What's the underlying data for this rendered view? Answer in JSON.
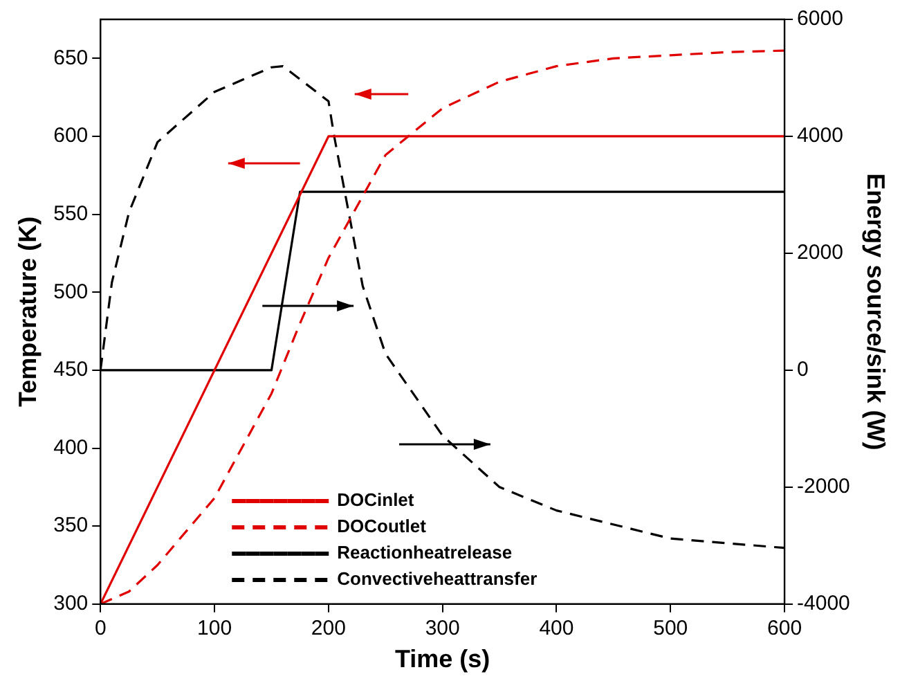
{
  "chart_data": {
    "type": "line",
    "xlabel": "Time (s)",
    "ylabel": "Temperature (K)",
    "y2label": "Energy source/sink (W)",
    "xlim": [
      0,
      600
    ],
    "xticks": [
      0,
      100,
      200,
      300,
      400,
      500,
      600
    ],
    "ylim": [
      300,
      675
    ],
    "yticks": [
      300,
      350,
      400,
      450,
      500,
      550,
      600,
      650
    ],
    "y2lim": [
      -4000,
      6000
    ],
    "y2ticks": [
      -4000,
      -2000,
      0,
      2000,
      4000,
      6000
    ],
    "grid": false,
    "legend": "bottom left",
    "marker": "none",
    "series": [
      {
        "name": "DOCinlet",
        "color": "#e00000",
        "line_style": "solid",
        "x": [
          0,
          200,
          600
        ],
        "values": [
          300,
          600,
          600
        ]
      },
      {
        "name": "DOCoutlet",
        "color": "#e00000",
        "line_style": "dashed",
        "x": [
          0,
          25,
          50,
          100,
          150,
          175,
          200,
          250,
          300,
          350,
          400,
          450,
          500,
          550,
          600
        ],
        "values": [
          300,
          308,
          325,
          368,
          435,
          480,
          522,
          588,
          618,
          635,
          645,
          650,
          652,
          654,
          655
        ]
      },
      {
        "name": "Reactionheatrelease",
        "color": "#000000",
        "line_style": "solid",
        "axis": "y2",
        "x": [
          0,
          150,
          175,
          600
        ],
        "values": [
          0,
          0,
          3050,
          3050
        ]
      },
      {
        "name": "Convectiveheattransfer",
        "color": "#000000",
        "line_style": "dashed",
        "axis": "y2",
        "x": [
          0,
          10,
          25,
          50,
          100,
          150,
          160,
          200,
          205,
          230,
          250,
          300,
          350,
          400,
          500,
          600
        ],
        "values": [
          0,
          1500,
          2700,
          3900,
          4760,
          5180,
          5200,
          4600,
          4000,
          1440,
          280,
          -1120,
          -2000,
          -2400,
          -2880,
          -3040
        ]
      }
    ]
  }
}
